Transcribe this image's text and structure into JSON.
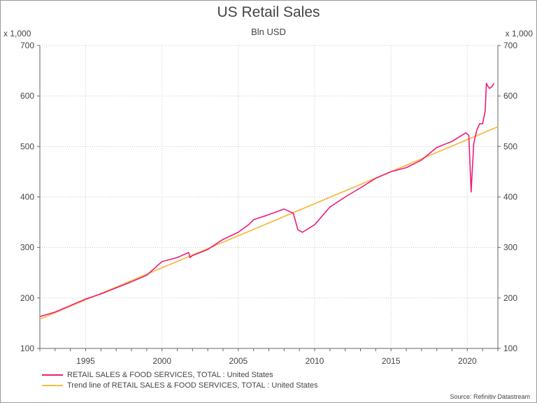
{
  "chart_data": {
    "type": "line",
    "title": "US Retail Sales",
    "subtitle": "Bln USD",
    "y_unit_left": "x 1,000",
    "y_unit_right": "x 1,000",
    "xlim": [
      1992.0,
      2022.0
    ],
    "ylim": [
      100,
      700
    ],
    "x_ticks": [
      1995,
      2000,
      2005,
      2010,
      2015,
      2020
    ],
    "y_ticks": [
      100,
      200,
      300,
      400,
      500,
      600,
      700
    ],
    "grid": true,
    "legend_position": "bottom-left",
    "series": [
      {
        "name": "RETAIL SALES & FOOD SERVICES, TOTAL : United States",
        "color": "#ee1c7a",
        "x": [
          1992.0,
          1993.0,
          1994.0,
          1995.0,
          1996.0,
          1997.0,
          1998.0,
          1999.0,
          2000.0,
          2001.0,
          2001.75,
          2001.83,
          2002.0,
          2003.0,
          2004.0,
          2005.0,
          2005.67,
          2006.0,
          2007.0,
          2008.0,
          2008.6,
          2008.9,
          2009.2,
          2010.0,
          2011.0,
          2012.0,
          2013.0,
          2014.0,
          2015.0,
          2016.0,
          2017.0,
          2018.0,
          2019.0,
          2019.9,
          2020.1,
          2020.25,
          2020.42,
          2020.6,
          2020.8,
          2021.0,
          2021.17,
          2021.25,
          2021.33,
          2021.45,
          2021.6,
          2021.75
        ],
        "y": [
          163,
          172,
          185,
          198,
          208,
          220,
          232,
          245,
          272,
          280,
          290,
          280,
          284,
          296,
          316,
          330,
          345,
          355,
          365,
          376,
          368,
          335,
          330,
          345,
          380,
          400,
          418,
          437,
          450,
          458,
          473,
          498,
          510,
          527,
          522,
          410,
          505,
          530,
          545,
          545,
          570,
          625,
          620,
          615,
          618,
          625
        ]
      },
      {
        "name": "Trend line of RETAIL SALES & FOOD SERVICES, TOTAL : United States",
        "color": "#f7bb45",
        "x": [
          1992.0,
          2022.0
        ],
        "y": [
          158,
          539
        ]
      }
    ],
    "source": "Source: Refinitiv Datastream"
  }
}
